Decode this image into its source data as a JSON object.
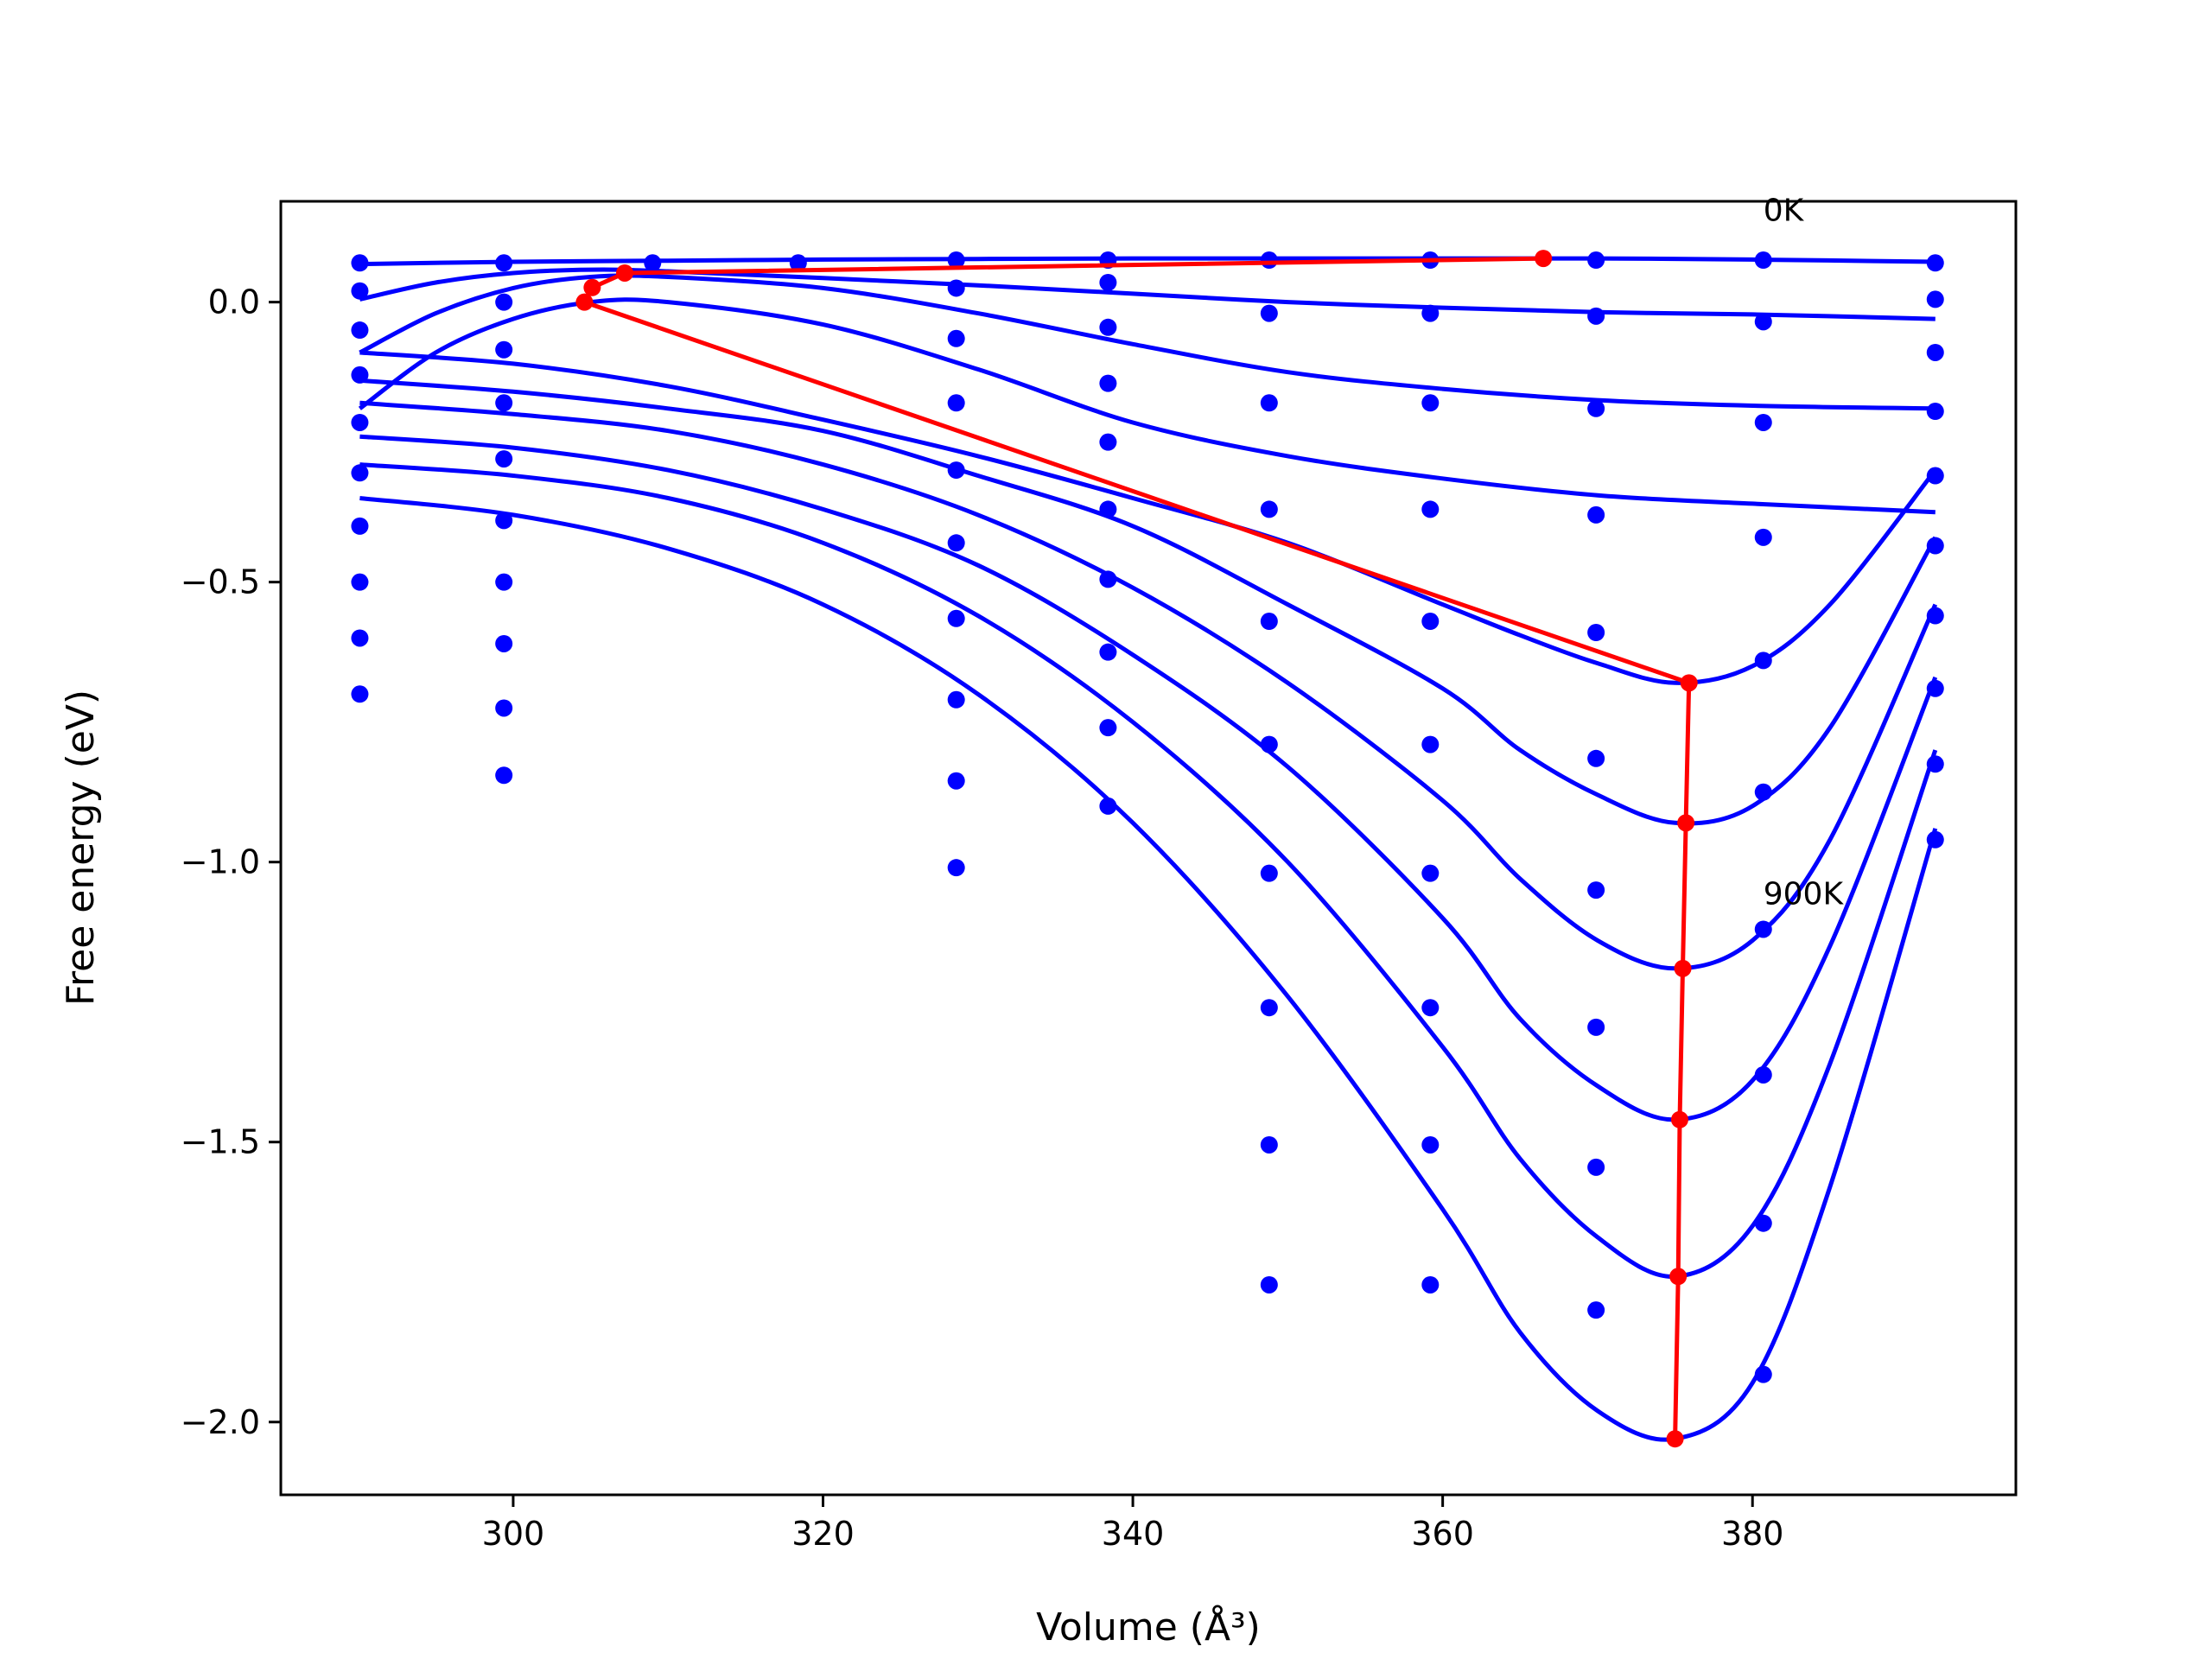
{
  "chart_data": {
    "type": "line",
    "xlabel": "Volume (Å³)",
    "ylabel": "Free energy (eV)",
    "xlim": [
      285,
      397
    ],
    "ylim": [
      -2.13,
      0.18
    ],
    "xticks": [
      300,
      320,
      340,
      360,
      380
    ],
    "yticks": [
      0.0,
      -0.5,
      -1.0,
      -1.5,
      -2.0
    ],
    "ytick_labels": [
      "0.0",
      "−0.5",
      "−1.0",
      "−1.5",
      "−2.0"
    ],
    "grid": false,
    "legend": "none",
    "colors": {
      "points": "#0000ff",
      "fits": "#0000ff",
      "minimum_path": "#ff0000"
    },
    "annotations": [
      {
        "text": "0K",
        "x": 380.7,
        "y": 0.145
      },
      {
        "text": "900K",
        "x": 380.7,
        "y": -1.075
      }
    ],
    "volumes": [
      290.1,
      299.4,
      309.0,
      318.4,
      328.6,
      338.4,
      348.8,
      359.2,
      369.9,
      380.7,
      391.8
    ],
    "points": [
      [
        0.07,
        0.02,
        -0.05,
        -0.13,
        -0.215,
        -0.305,
        -0.4,
        -0.5,
        -0.6,
        -0.7
      ],
      [
        0.07,
        0.0,
        -0.085,
        -0.18,
        -0.28,
        -0.39,
        -0.5,
        -0.61,
        -0.725,
        -0.845
      ],
      [
        0.07
      ],
      [
        0.07
      ],
      [
        0.075,
        0.025,
        -0.065,
        -0.18,
        -0.3,
        -0.43,
        -0.565,
        -0.71,
        -0.855,
        -1.01
      ],
      [
        0.075,
        0.035,
        -0.045,
        -0.145,
        -0.25,
        -0.37,
        -0.495,
        -0.625,
        -0.76,
        -0.9
      ],
      [
        0.075,
        -0.02,
        -0.18,
        -0.37,
        -0.57,
        -0.79,
        -1.02,
        -1.26,
        -1.505,
        -1.755
      ],
      [
        0.075,
        -0.02,
        -0.18,
        -0.37,
        -0.57,
        -0.79,
        -1.02,
        -1.26,
        -1.505,
        -1.755
      ],
      [
        0.075,
        -0.025,
        -0.19,
        -0.38,
        -0.59,
        -0.815,
        -1.05,
        -1.295,
        -1.545,
        -1.8
      ],
      [
        0.075,
        -0.035,
        -0.215,
        -0.42,
        -0.64,
        -0.875,
        -1.12,
        -1.38,
        -1.645,
        -1.915
      ],
      [
        0.07,
        0.005,
        -0.09,
        -0.195,
        -0.31,
        -0.435,
        -0.56,
        -0.69,
        -0.825,
        -0.96
      ]
    ],
    "fit_curves": [
      {
        "x": [
          290.1,
          300,
          310,
          320,
          330,
          340,
          350,
          360,
          370,
          380,
          391.8
        ],
        "y": [
          0.068,
          0.072,
          0.074,
          0.076,
          0.077,
          0.078,
          0.078,
          0.078,
          0.078,
          0.076,
          0.072
        ]
      },
      {
        "x": [
          290.1,
          295,
          300,
          305,
          310,
          320,
          330,
          340,
          350,
          360,
          370,
          380,
          391.8
        ],
        "y": [
          0.005,
          0.035,
          0.052,
          0.058,
          0.055,
          0.043,
          0.03,
          0.015,
          0.0,
          -0.01,
          -0.018,
          -0.022,
          -0.03
        ]
      },
      {
        "x": [
          290.1,
          295,
          300,
          305,
          310,
          320,
          330,
          340,
          350,
          360,
          370,
          380,
          391.8
        ],
        "y": [
          -0.09,
          -0.02,
          0.025,
          0.045,
          0.045,
          0.025,
          -0.02,
          -0.075,
          -0.125,
          -0.155,
          -0.175,
          -0.185,
          -0.19
        ]
      },
      {
        "x": [
          290.1,
          295,
          300,
          305,
          310,
          320,
          330,
          340,
          350,
          360,
          370,
          380,
          391.8
        ],
        "y": [
          -0.19,
          -0.09,
          -0.03,
          0.0,
          0.0,
          -0.04,
          -0.12,
          -0.215,
          -0.275,
          -0.315,
          -0.345,
          -0.36,
          -0.375
        ]
      },
      {
        "x": [
          290.1,
          300,
          310,
          320,
          330,
          340,
          350,
          360,
          365,
          370,
          375,
          380,
          385,
          391.8
        ],
        "y": [
          -0.09,
          -0.11,
          -0.15,
          -0.21,
          -0.275,
          -0.35,
          -0.43,
          -0.54,
          -0.595,
          -0.645,
          -0.68,
          -0.65,
          -0.54,
          -0.3
        ]
      },
      {
        "x": [
          290.1,
          300,
          310,
          320,
          330,
          340,
          350,
          360,
          365,
          370,
          375,
          380,
          385,
          391.8
        ],
        "y": [
          -0.14,
          -0.16,
          -0.19,
          -0.23,
          -0.31,
          -0.4,
          -0.54,
          -0.69,
          -0.8,
          -0.88,
          -0.93,
          -0.9,
          -0.76,
          -0.42
        ]
      },
      {
        "x": [
          290.1,
          300,
          310,
          320,
          330,
          340,
          350,
          360,
          365,
          370,
          375,
          380,
          385,
          391.8
        ],
        "y": [
          -0.18,
          -0.2,
          -0.23,
          -0.29,
          -0.38,
          -0.51,
          -0.68,
          -0.89,
          -1.03,
          -1.14,
          -1.19,
          -1.14,
          -0.96,
          -0.54
        ]
      },
      {
        "x": [
          290.1,
          300,
          310,
          320,
          330,
          340,
          350,
          360,
          365,
          370,
          375,
          380,
          385,
          391.8
        ],
        "y": [
          -0.24,
          -0.26,
          -0.3,
          -0.37,
          -0.47,
          -0.63,
          -0.83,
          -1.1,
          -1.28,
          -1.4,
          -1.46,
          -1.39,
          -1.15,
          -0.67
        ]
      },
      {
        "x": [
          290.1,
          300,
          310,
          320,
          330,
          340,
          350,
          360,
          365,
          370,
          375,
          380,
          385,
          391.8
        ],
        "y": [
          -0.29,
          -0.31,
          -0.35,
          -0.43,
          -0.56,
          -0.75,
          -1.0,
          -1.33,
          -1.53,
          -1.67,
          -1.74,
          -1.65,
          -1.36,
          -0.8
        ]
      },
      {
        "x": [
          290.1,
          300,
          310,
          320,
          330,
          340,
          350,
          360,
          365,
          370,
          375,
          380,
          385,
          391.8
        ],
        "y": [
          -0.35,
          -0.38,
          -0.44,
          -0.54,
          -0.7,
          -0.93,
          -1.24,
          -1.62,
          -1.84,
          -1.98,
          -2.03,
          -1.93,
          -1.58,
          -0.94
        ]
      }
    ],
    "minimum_path": {
      "x": [
        366.5,
        307.2,
        305.1,
        304.6,
        375.9,
        375.7,
        375.5,
        375.3,
        375.2,
        375.0
      ],
      "y": [
        0.078,
        0.052,
        0.026,
        0.0,
        -0.68,
        -0.93,
        -1.19,
        -1.46,
        -1.74,
        -2.03
      ]
    }
  }
}
